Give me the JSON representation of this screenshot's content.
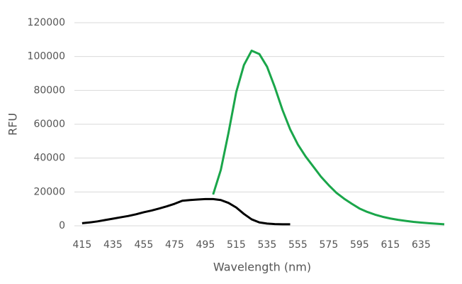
{
  "chart_data": {
    "type": "line",
    "x_label": "Wavelength (nm)",
    "y_label": "RFU",
    "xlim": [
      410,
      650
    ],
    "xticks": [
      415,
      435,
      455,
      475,
      495,
      515,
      535,
      555,
      575,
      595,
      615,
      635
    ],
    "ylim": [
      0,
      120000
    ],
    "yticks": [
      0,
      20000,
      40000,
      60000,
      80000,
      100000,
      120000
    ],
    "grid": true,
    "series": [
      {
        "color": "#000000",
        "x": [
          415,
          420,
          425,
          430,
          435,
          440,
          445,
          450,
          455,
          460,
          465,
          470,
          475,
          480,
          485,
          490,
          495,
          500,
          505,
          510,
          515,
          520,
          525,
          530,
          535,
          540,
          545,
          550
        ],
        "values": [
          1500,
          2000,
          2600,
          3400,
          4200,
          5000,
          5800,
          6800,
          8000,
          9000,
          10200,
          11500,
          13000,
          14800,
          15200,
          15500,
          15800,
          15800,
          15200,
          13500,
          10800,
          7000,
          3800,
          2000,
          1300,
          1000,
          900,
          900
        ]
      },
      {
        "color": "#1aa64a",
        "x": [
          500,
          505,
          510,
          515,
          520,
          525,
          530,
          535,
          540,
          545,
          550,
          555,
          560,
          565,
          570,
          575,
          580,
          585,
          590,
          595,
          600,
          605,
          610,
          615,
          620,
          625,
          630,
          635,
          640,
          645,
          650
        ],
        "values": [
          18500,
          33000,
          55000,
          79000,
          95000,
          103500,
          101500,
          94000,
          82000,
          68500,
          57000,
          48000,
          41000,
          35000,
          29000,
          24000,
          19500,
          16000,
          13000,
          10200,
          8200,
          6600,
          5300,
          4300,
          3500,
          2900,
          2300,
          1900,
          1500,
          1200,
          900
        ]
      }
    ]
  }
}
